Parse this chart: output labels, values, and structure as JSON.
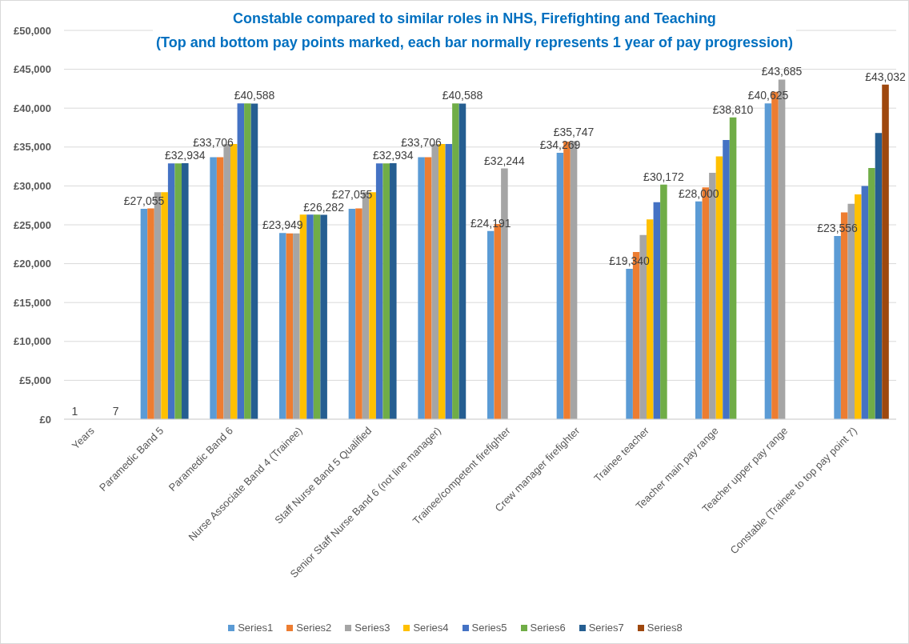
{
  "chart_data": {
    "type": "bar",
    "title": "Constable compared to similar roles in NHS, Firefighting and Teaching",
    "subtitle": "(Top and bottom pay points marked, each bar normally represents 1 year of pay progression)",
    "categories": [
      "Years",
      "Paramedic Band 5",
      "Paramedic Band 6",
      "Nurse Associate Band 4 (Trainee)",
      "Staff Nurse Band 5 Qualified",
      "Senior Staff Nurse Band 6 (not line manager)",
      "Trainee/competent firefighter",
      "Crew manager firefighter",
      "Trainee teacher",
      "Teacher main pay range",
      "Teacher upper pay range",
      "Constable (Trainee to top pay point 7)"
    ],
    "series": [
      {
        "name": "Series1",
        "color": "#5b9bd5",
        "values": [
          1,
          27055,
          33706,
          23949,
          27055,
          33706,
          24191,
          34269,
          19340,
          28000,
          40625,
          23556
        ],
        "value_labels": [
          "1",
          "£27,055",
          "£33,706",
          "£23,949",
          "£27,055",
          "£33,706",
          "£24,191",
          "£34,269",
          "£19,340",
          "£28,000",
          "£40,625",
          "£23,556"
        ]
      },
      {
        "name": "Series2",
        "color": "#ed7d31",
        "values": [
          null,
          27100,
          33700,
          23900,
          27100,
          33700,
          25100,
          35700,
          21500,
          29800,
          42100,
          26600
        ]
      },
      {
        "name": "Series3",
        "color": "#a5a5a5",
        "values": [
          null,
          29200,
          35400,
          23900,
          29200,
          35400,
          32244,
          35747,
          23700,
          31700,
          43685,
          27700
        ],
        "value_labels": [
          null,
          null,
          null,
          null,
          null,
          null,
          "£32,244",
          "£35,747",
          null,
          null,
          "£43,685",
          null
        ]
      },
      {
        "name": "Series4",
        "color": "#ffc000",
        "values": [
          null,
          29200,
          35400,
          26300,
          29200,
          35400,
          null,
          null,
          25700,
          33800,
          null,
          28900
        ]
      },
      {
        "name": "Series5",
        "color": "#4472c4",
        "values": [
          null,
          32900,
          40600,
          26300,
          32900,
          35400,
          null,
          null,
          27900,
          35900,
          null,
          30000
        ]
      },
      {
        "name": "Series6",
        "color": "#70ad47",
        "values": [
          null,
          32900,
          40600,
          26300,
          32900,
          40600,
          null,
          null,
          30172,
          38810,
          null,
          32300
        ],
        "value_labels": [
          null,
          null,
          null,
          null,
          null,
          null,
          null,
          null,
          "£30,172",
          "£38,810",
          null,
          null
        ]
      },
      {
        "name": "Series7",
        "color": "#255e91",
        "values": [
          7,
          32934,
          40588,
          26282,
          32934,
          40588,
          null,
          null,
          null,
          null,
          null,
          36800
        ],
        "value_labels": [
          "7",
          "£32,934",
          "£40,588",
          "£26,282",
          "£32,934",
          "£40,588",
          null,
          null,
          null,
          null,
          null,
          null
        ]
      },
      {
        "name": "Series8",
        "color": "#9e480e",
        "values": [
          null,
          null,
          null,
          null,
          null,
          null,
          null,
          null,
          null,
          null,
          null,
          43032
        ],
        "value_labels": [
          null,
          null,
          null,
          null,
          null,
          null,
          null,
          null,
          null,
          null,
          null,
          "£43,032"
        ]
      }
    ],
    "ylim": [
      0,
      50000
    ],
    "yticks": [
      {
        "value": 0,
        "label": "£0"
      },
      {
        "value": 5000,
        "label": "£5,000"
      },
      {
        "value": 10000,
        "label": "£10,000"
      },
      {
        "value": 15000,
        "label": "£15,000"
      },
      {
        "value": 20000,
        "label": "£20,000"
      },
      {
        "value": 25000,
        "label": "£25,000"
      },
      {
        "value": 30000,
        "label": "£30,000"
      },
      {
        "value": 35000,
        "label": "£35,000"
      },
      {
        "value": 40000,
        "label": "£40,000"
      },
      {
        "value": 45000,
        "label": "£45,000"
      },
      {
        "value": 50000,
        "label": "£50,000"
      }
    ],
    "grid": "y",
    "legend": "bottom"
  }
}
